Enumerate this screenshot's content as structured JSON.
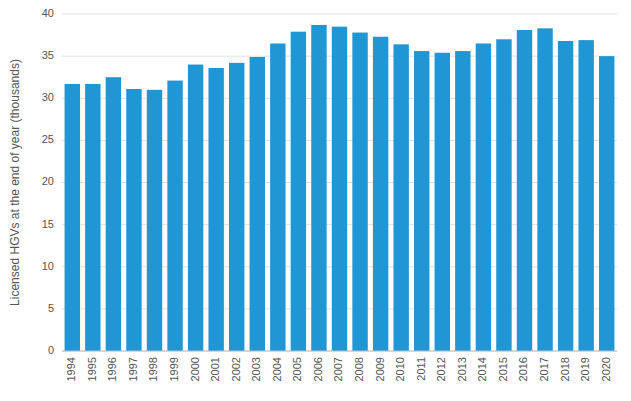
{
  "chart_data": {
    "type": "bar",
    "categories": [
      "1994",
      "1995",
      "1996",
      "1997",
      "1998",
      "1999",
      "2000",
      "2001",
      "2002",
      "2003",
      "2004",
      "2005",
      "2006",
      "2007",
      "2008",
      "2009",
      "2010",
      "2011",
      "2012",
      "2013",
      "2014",
      "2015",
      "2016",
      "2017",
      "2018",
      "2019",
      "2020"
    ],
    "values": [
      31.7,
      31.7,
      32.5,
      31.1,
      31.0,
      32.1,
      34.0,
      33.6,
      34.2,
      34.9,
      36.5,
      37.9,
      38.7,
      38.5,
      37.8,
      37.3,
      36.4,
      35.6,
      35.4,
      35.6,
      36.5,
      37.0,
      38.1,
      38.3,
      36.8,
      36.9,
      35.0
    ],
    "color": "#2196d4",
    "ylabel": "Licensed HGVs at the end of year (thousands)",
    "ylim": [
      0,
      40
    ],
    "yticks": [
      0,
      5,
      10,
      15,
      20,
      25,
      30,
      35,
      40
    ],
    "grid": true
  }
}
